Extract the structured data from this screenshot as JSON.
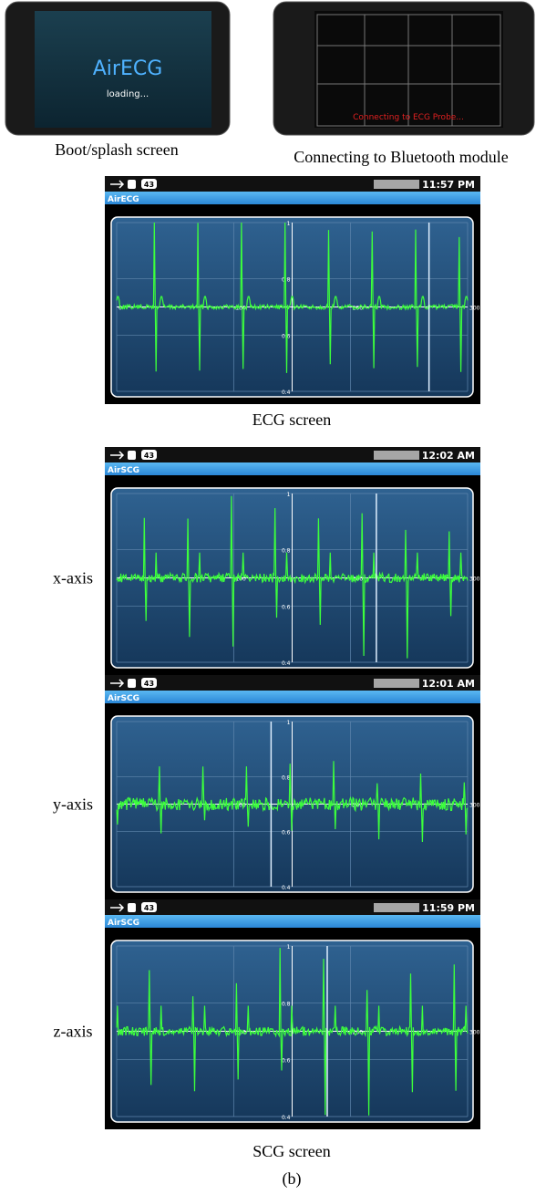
{
  "figure": {
    "splash": {
      "app_name": "AirECG",
      "status": "loading...",
      "caption": "Boot/splash screen"
    },
    "connecting": {
      "status": "Connecting to ECG Probe...",
      "caption": "Connecting to Bluetooth module"
    },
    "ecg": {
      "caption": "ECG screen",
      "screens": [
        {
          "badge": "43",
          "time": "11:57 PM",
          "app_title": "AirECG",
          "xlim": [
            0,
            300
          ],
          "ylim": [
            0.4,
            1
          ],
          "xticks": [
            0,
            100,
            200,
            300
          ],
          "yticks": [
            1,
            0.8,
            0.6,
            0.4
          ]
        }
      ]
    },
    "scg": {
      "caption": "SCG screen",
      "screens": [
        {
          "axis_label": "x-axis",
          "badge": "43",
          "time": "12:02 AM",
          "app_title": "AirSCG",
          "xlim": [
            0,
            300
          ],
          "ylim": [
            0.4,
            1
          ],
          "xticks": [
            0,
            100,
            200,
            300
          ],
          "yticks": [
            1,
            0.8,
            0.6,
            0.4
          ]
        },
        {
          "axis_label": "y-axis",
          "badge": "43",
          "time": "12:01 AM",
          "app_title": "AirSCG",
          "xlim": [
            0,
            300
          ],
          "ylim": [
            0.4,
            1
          ],
          "xticks": [
            0,
            100,
            200,
            300
          ],
          "yticks": [
            1,
            0.8,
            0.6,
            0.4
          ]
        },
        {
          "axis_label": "z-axis",
          "badge": "43",
          "time": "11:59 PM",
          "app_title": "AirSCG",
          "xlim": [
            0,
            300
          ],
          "ylim": [
            0.4,
            1
          ],
          "xticks": [
            0,
            100,
            200,
            300
          ],
          "yticks": [
            1,
            0.8,
            0.6,
            0.4
          ]
        }
      ]
    },
    "panel_label": "(b)"
  }
}
